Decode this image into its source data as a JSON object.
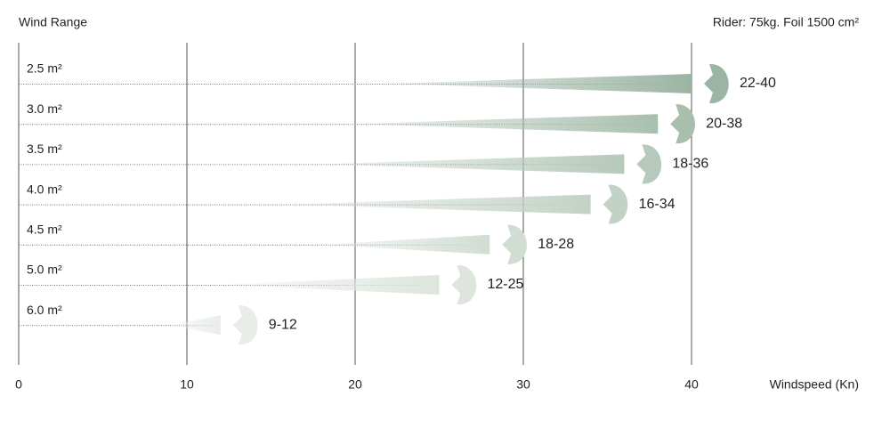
{
  "chart_data": {
    "type": "range",
    "title": "Wind Range",
    "subtitle": "Rider: 75kg. Foil 1500 cm²",
    "xlabel": "Windspeed (Kn)",
    "categories": [
      "2.5 m²",
      "3.0 m²",
      "3.5 m²",
      "4.0 m²",
      "4.5 m²",
      "5.0 m²",
      "6.0 m²"
    ],
    "ranges": [
      [
        22,
        40
      ],
      [
        20,
        38
      ],
      [
        18,
        36
      ],
      [
        16,
        34
      ],
      [
        18,
        28
      ],
      [
        12,
        25
      ],
      [
        9,
        12
      ]
    ],
    "value_labels": [
      "22-40",
      "20-38",
      "18-36",
      "16-34",
      "18-28",
      "12-25",
      "9-12"
    ],
    "colors": [
      "#9cb4a4",
      "#a8bfae",
      "#b6c9ba",
      "#c3d2c6",
      "#d1ddd2",
      "#dde5dd",
      "#e8ede8"
    ],
    "xlim": [
      0,
      40
    ],
    "xticks": [
      0,
      10,
      20,
      30,
      40
    ],
    "grid": true
  }
}
